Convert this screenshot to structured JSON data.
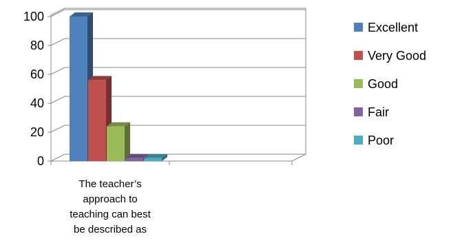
{
  "chart_data": {
    "type": "bar",
    "title": "",
    "xlabel": "",
    "ylabel": "",
    "categories": [
      "The teacher’s approach to teaching can best be described as"
    ],
    "category_lines": [
      "The teacher’s",
      "approach to",
      "teaching can best",
      "be described as"
    ],
    "series": [
      {
        "name": "Excellent",
        "values": [
          100
        ],
        "color": "#4F81BD"
      },
      {
        "name": "Very Good",
        "values": [
          56
        ],
        "color": "#C0504D"
      },
      {
        "name": "Good",
        "values": [
          24
        ],
        "color": "#9BBB59"
      },
      {
        "name": "Fair",
        "values": [
          2
        ],
        "color": "#8064A2"
      },
      {
        "name": "Poor",
        "values": [
          2
        ],
        "color": "#4BACC6"
      }
    ],
    "yticks": [
      "0",
      "20",
      "40",
      "60",
      "80",
      "100"
    ],
    "ylim": [
      0,
      100
    ],
    "grid": true,
    "legend": "right",
    "style": "3d-clustered-column"
  }
}
